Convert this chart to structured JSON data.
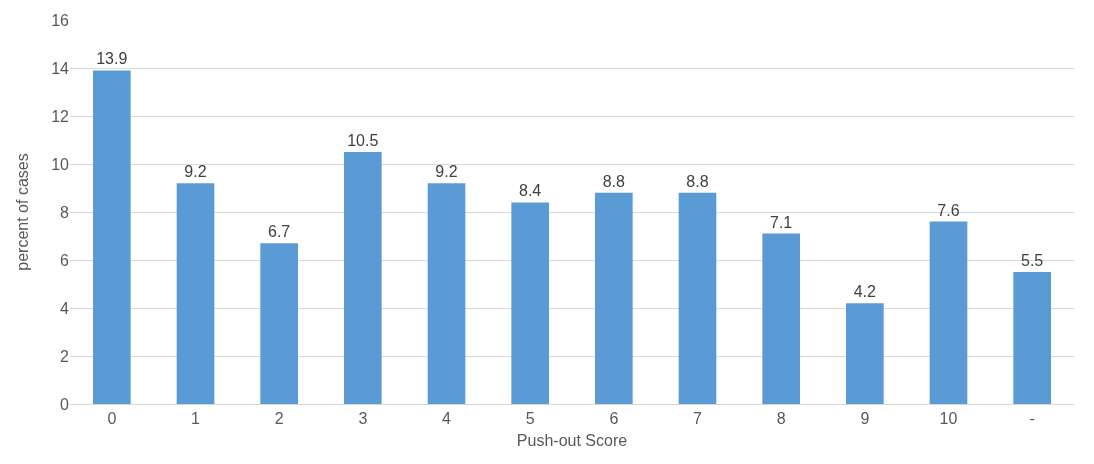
{
  "chart_data": {
    "type": "bar",
    "xlabel": "Push-out Score",
    "ylabel": "percent of cases",
    "categories": [
      "0",
      "1",
      "2",
      "3",
      "4",
      "5",
      "6",
      "7",
      "8",
      "9",
      "10",
      "-"
    ],
    "values": [
      13.9,
      9.2,
      6.7,
      10.5,
      9.2,
      8.4,
      8.8,
      8.8,
      7.1,
      4.2,
      7.6,
      5.5
    ],
    "color": "#5b9bd5",
    "ylim": [
      0,
      16
    ],
    "yticks": [
      0,
      2,
      4,
      6,
      8,
      10,
      12,
      14,
      16
    ],
    "grid": "y",
    "data_labels": true,
    "legend": false
  }
}
